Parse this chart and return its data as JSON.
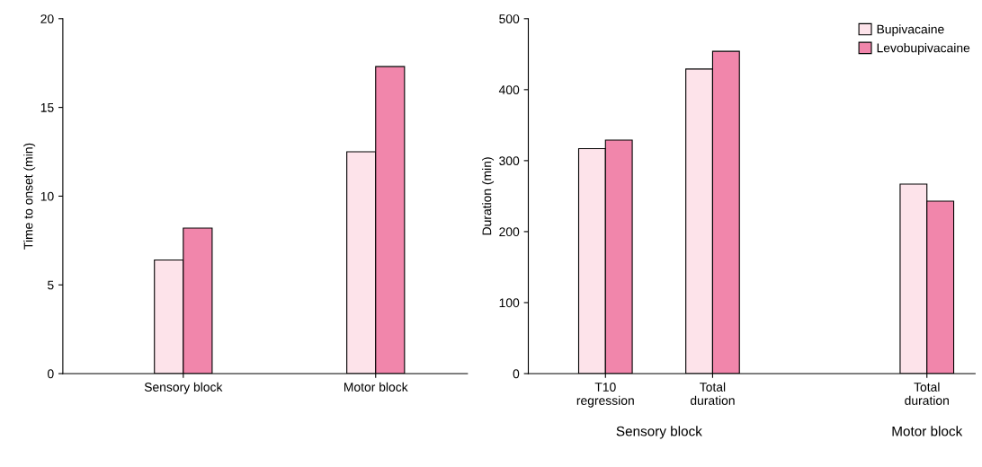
{
  "chart_data": [
    {
      "type": "bar",
      "ylabel": "Time to onset (min)",
      "categories": [
        "Sensory block",
        "Motor block"
      ],
      "series": [
        {
          "color": "#fde3ea",
          "values": [
            6.4,
            12.5
          ]
        },
        {
          "color": "#f186ab",
          "values": [
            8.2,
            17.3
          ]
        }
      ],
      "ylim": [
        0,
        20
      ],
      "yticks": [
        0,
        5,
        10,
        15,
        20
      ],
      "grid": false,
      "legend": false
    },
    {
      "type": "bar",
      "ylabel": "Duration (min)",
      "categories": [
        "T10\nregression",
        "Total\nduration",
        null,
        "Total\nduration"
      ],
      "series": [
        {
          "name": "Bupivacaine",
          "color": "#fde3ea",
          "values": [
            317,
            429,
            null,
            267
          ]
        },
        {
          "name": "Levobupivacaine",
          "color": "#f186ab",
          "values": [
            329,
            454,
            null,
            243
          ]
        }
      ],
      "ylim": [
        0,
        500
      ],
      "yticks": [
        0,
        100,
        200,
        300,
        400,
        500
      ],
      "grid": false,
      "legend": "top right",
      "annotations": [
        "Sensory block",
        "Motor block"
      ]
    }
  ]
}
